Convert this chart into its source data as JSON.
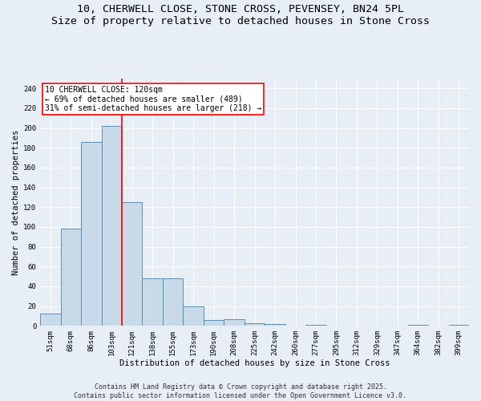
{
  "title_line1": "10, CHERWELL CLOSE, STONE CROSS, PEVENSEY, BN24 5PL",
  "title_line2": "Size of property relative to detached houses in Stone Cross",
  "xlabel": "Distribution of detached houses by size in Stone Cross",
  "ylabel": "Number of detached properties",
  "bar_labels": [
    "51sqm",
    "68sqm",
    "86sqm",
    "103sqm",
    "121sqm",
    "138sqm",
    "155sqm",
    "173sqm",
    "190sqm",
    "208sqm",
    "225sqm",
    "242sqm",
    "260sqm",
    "277sqm",
    "295sqm",
    "312sqm",
    "329sqm",
    "347sqm",
    "364sqm",
    "382sqm",
    "399sqm"
  ],
  "bar_values": [
    12,
    98,
    186,
    202,
    125,
    48,
    48,
    20,
    6,
    7,
    3,
    2,
    0,
    1,
    0,
    0,
    0,
    0,
    1,
    0,
    1
  ],
  "bar_color": "#c8d9e8",
  "bar_edge_color": "#5a8fb5",
  "red_line_index": 3.5,
  "annotation_text": "10 CHERWELL CLOSE: 120sqm\n← 69% of detached houses are smaller (489)\n31% of semi-detached houses are larger (218) →",
  "annotation_box_color": "white",
  "annotation_box_edge_color": "red",
  "ylim": [
    0,
    250
  ],
  "yticks": [
    0,
    20,
    40,
    60,
    80,
    100,
    120,
    140,
    160,
    180,
    200,
    220,
    240
  ],
  "bg_color": "#e8eef5",
  "grid_color": "white",
  "footer_line1": "Contains HM Land Registry data © Crown copyright and database right 2025.",
  "footer_line2": "Contains public sector information licensed under the Open Government Licence v3.0.",
  "title_fontsize": 9.5,
  "axis_label_fontsize": 7.5,
  "tick_fontsize": 6.5,
  "annotation_fontsize": 7,
  "footer_fontsize": 6
}
